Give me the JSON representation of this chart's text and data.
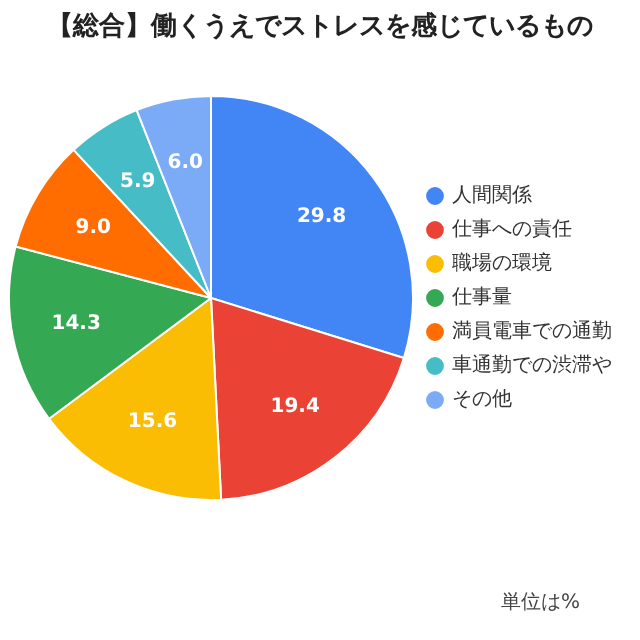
{
  "chart_data": {
    "type": "pie",
    "title": "【総合】働くうえでストレスを感じているもの",
    "categories": [
      "人間関係",
      "仕事への責任",
      "職場の環境",
      "仕事量",
      "満員電車での通勤",
      "車通勤での渋滞や",
      "その他"
    ],
    "values": [
      29.8,
      19.4,
      15.6,
      14.3,
      9.0,
      5.9,
      6.0
    ],
    "colors": [
      "#4285f4",
      "#ea4335",
      "#fbbc04",
      "#34a853",
      "#ff6d01",
      "#46bdc6",
      "#7baaf7"
    ],
    "value_labels": [
      "29.8",
      "19.4",
      "15.6",
      "14.3",
      "9.0",
      "5.9",
      "6.0"
    ],
    "legend": "right",
    "annotations": [
      "単位は%"
    ]
  }
}
